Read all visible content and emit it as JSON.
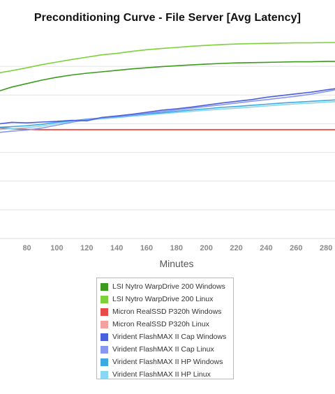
{
  "chart_data": {
    "type": "line",
    "title": "Preconditioning Curve - File Server [Avg Latency]",
    "xlabel": "Minutes",
    "ylabel": "",
    "x_ticks": [
      80,
      100,
      120,
      140,
      160,
      180,
      200,
      220,
      240,
      260,
      280
    ],
    "xlim": [
      62,
      286
    ],
    "ylim": [
      0,
      7
    ],
    "y_grid": [
      1,
      2,
      3,
      4,
      5,
      6
    ],
    "grid": true,
    "legend_position": "bottom-center",
    "series": [
      {
        "name": "LSI Nytro WarpDrive 200 Windows",
        "color": "#3c9a1c",
        "x": [
          62,
          70,
          80,
          90,
          100,
          110,
          120,
          130,
          140,
          150,
          160,
          170,
          180,
          190,
          200,
          210,
          220,
          230,
          240,
          250,
          260,
          270,
          280,
          286
        ],
        "values": [
          5.15,
          5.28,
          5.4,
          5.52,
          5.62,
          5.7,
          5.76,
          5.81,
          5.86,
          5.91,
          5.95,
          5.99,
          6.02,
          6.05,
          6.08,
          6.1,
          6.12,
          6.13,
          6.14,
          6.15,
          6.16,
          6.16,
          6.17,
          6.17
        ]
      },
      {
        "name": "LSI Nytro WarpDrive 200 Linux",
        "color": "#7ed13a",
        "x": [
          62,
          70,
          80,
          90,
          100,
          110,
          120,
          130,
          140,
          150,
          160,
          170,
          180,
          190,
          200,
          210,
          220,
          230,
          240,
          250,
          260,
          270,
          280,
          286
        ],
        "values": [
          5.78,
          5.85,
          5.95,
          6.06,
          6.15,
          6.24,
          6.32,
          6.4,
          6.45,
          6.52,
          6.58,
          6.62,
          6.66,
          6.7,
          6.73,
          6.76,
          6.78,
          6.79,
          6.8,
          6.81,
          6.82,
          6.82,
          6.83,
          6.83
        ]
      },
      {
        "name": "Micron RealSSD P320h Windows",
        "color": "#e84a4a",
        "x": [
          62,
          70,
          80,
          90,
          100,
          120,
          140,
          160,
          180,
          200,
          220,
          240,
          260,
          280,
          286
        ],
        "values": [
          3.85,
          3.82,
          3.8,
          3.79,
          3.79,
          3.79,
          3.79,
          3.79,
          3.79,
          3.79,
          3.79,
          3.79,
          3.79,
          3.79,
          3.79
        ]
      },
      {
        "name": "Micron RealSSD P320h Linux",
        "color": "#f4a0a0",
        "x": [
          62,
          70,
          80,
          90,
          100,
          120,
          140,
          160,
          180,
          200,
          220,
          240,
          260,
          280,
          286
        ],
        "values": [
          3.88,
          3.84,
          3.81,
          3.8,
          3.8,
          3.8,
          3.8,
          3.8,
          3.8,
          3.8,
          3.8,
          3.8,
          3.8,
          3.8,
          3.8
        ]
      },
      {
        "name": "Virident FlashMAX II Cap Windows",
        "color": "#4a5fdc",
        "x": [
          62,
          70,
          80,
          90,
          100,
          110,
          120,
          130,
          140,
          150,
          160,
          170,
          180,
          190,
          200,
          210,
          220,
          230,
          240,
          250,
          260,
          270,
          280,
          286
        ],
        "values": [
          4.0,
          4.05,
          4.03,
          4.06,
          4.08,
          4.12,
          4.1,
          4.22,
          4.27,
          4.33,
          4.4,
          4.47,
          4.52,
          4.58,
          4.65,
          4.72,
          4.78,
          4.84,
          4.92,
          4.98,
          5.04,
          5.1,
          5.18,
          5.22
        ]
      },
      {
        "name": "Virident FlashMAX II Cap Linux",
        "color": "#8898f0",
        "x": [
          62,
          70,
          80,
          90,
          100,
          110,
          120,
          130,
          140,
          150,
          160,
          170,
          180,
          190,
          200,
          210,
          220,
          230,
          240,
          250,
          260,
          270,
          280,
          286
        ],
        "values": [
          3.7,
          3.74,
          3.78,
          3.85,
          3.95,
          4.05,
          4.15,
          4.2,
          4.25,
          4.3,
          4.36,
          4.42,
          4.48,
          4.54,
          4.6,
          4.66,
          4.72,
          4.78,
          4.84,
          4.9,
          4.96,
          5.03,
          5.12,
          5.18
        ]
      },
      {
        "name": "Virident FlashMAX II HP Windows",
        "color": "#3ea8e0",
        "x": [
          62,
          70,
          80,
          90,
          100,
          110,
          120,
          130,
          140,
          150,
          160,
          170,
          180,
          190,
          200,
          210,
          220,
          230,
          240,
          250,
          260,
          270,
          280,
          286
        ],
        "values": [
          3.88,
          3.9,
          3.93,
          3.98,
          4.05,
          4.1,
          4.16,
          4.2,
          4.24,
          4.29,
          4.34,
          4.38,
          4.43,
          4.48,
          4.52,
          4.57,
          4.6,
          4.64,
          4.68,
          4.72,
          4.75,
          4.78,
          4.81,
          4.83
        ]
      },
      {
        "name": "Virident FlashMAX II HP Linux",
        "color": "#88d8f4",
        "x": [
          62,
          70,
          80,
          90,
          100,
          110,
          120,
          130,
          140,
          150,
          160,
          170,
          180,
          190,
          200,
          210,
          220,
          230,
          240,
          250,
          260,
          270,
          280,
          286
        ],
        "values": [
          3.8,
          3.83,
          3.86,
          3.92,
          4.0,
          4.06,
          4.12,
          4.17,
          4.21,
          4.26,
          4.3,
          4.35,
          4.39,
          4.43,
          4.47,
          4.51,
          4.54,
          4.58,
          4.62,
          4.66,
          4.69,
          4.72,
          4.75,
          4.77
        ]
      }
    ]
  }
}
